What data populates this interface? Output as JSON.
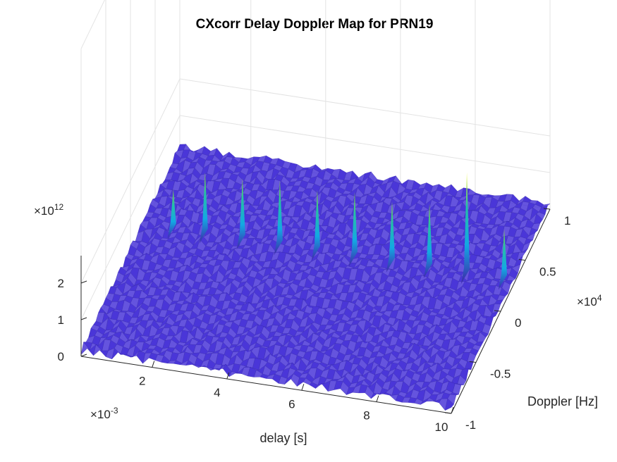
{
  "chart_data": {
    "type": "surface",
    "title": "CXcorr Delay Doppler Map for PRN19",
    "xlabel": "delay [s]",
    "ylabel": "Doppler [Hz]",
    "zlabel": "",
    "x_multiplier": "×10",
    "x_exponent": "-3",
    "y_multiplier": "×10",
    "y_exponent": "4",
    "z_multiplier": "×10",
    "z_exponent": "12",
    "x_ticks": [
      "2",
      "4",
      "6",
      "8",
      "10"
    ],
    "y_ticks": [
      "-1",
      "-0.5",
      "0",
      "0.5",
      "1"
    ],
    "z_ticks": [
      "0",
      "1",
      "2"
    ],
    "xlim": [
      0.1,
      10
    ],
    "ylim": [
      -10000,
      10000
    ],
    "zlim": [
      0,
      2.6
    ],
    "grid": true,
    "colormap": [
      "#3e26a8",
      "#2e59f2",
      "#13a8e3",
      "#26c0a6",
      "#8dc540",
      "#e9b935",
      "#f9fb15"
    ],
    "noise_floor_color": "#4a36d8",
    "peaks": [
      {
        "delay": 0.85,
        "doppler": 3000,
        "z": 0.9
      },
      {
        "delay": 1.7,
        "doppler": 3000,
        "z": 1.5
      },
      {
        "delay": 2.7,
        "doppler": 3000,
        "z": 1.5
      },
      {
        "delay": 3.7,
        "doppler": 3000,
        "z": 1.6
      },
      {
        "delay": 4.7,
        "doppler": 3000,
        "z": 1.5
      },
      {
        "delay": 5.7,
        "doppler": 3000,
        "z": 1.6
      },
      {
        "delay": 6.7,
        "doppler": 3000,
        "z": 1.5
      },
      {
        "delay": 7.7,
        "doppler": 3000,
        "z": 1.6
      },
      {
        "delay": 8.7,
        "doppler": 3000,
        "z": 2.6
      },
      {
        "delay": 9.7,
        "doppler": 3000,
        "z": 1.2
      }
    ]
  }
}
